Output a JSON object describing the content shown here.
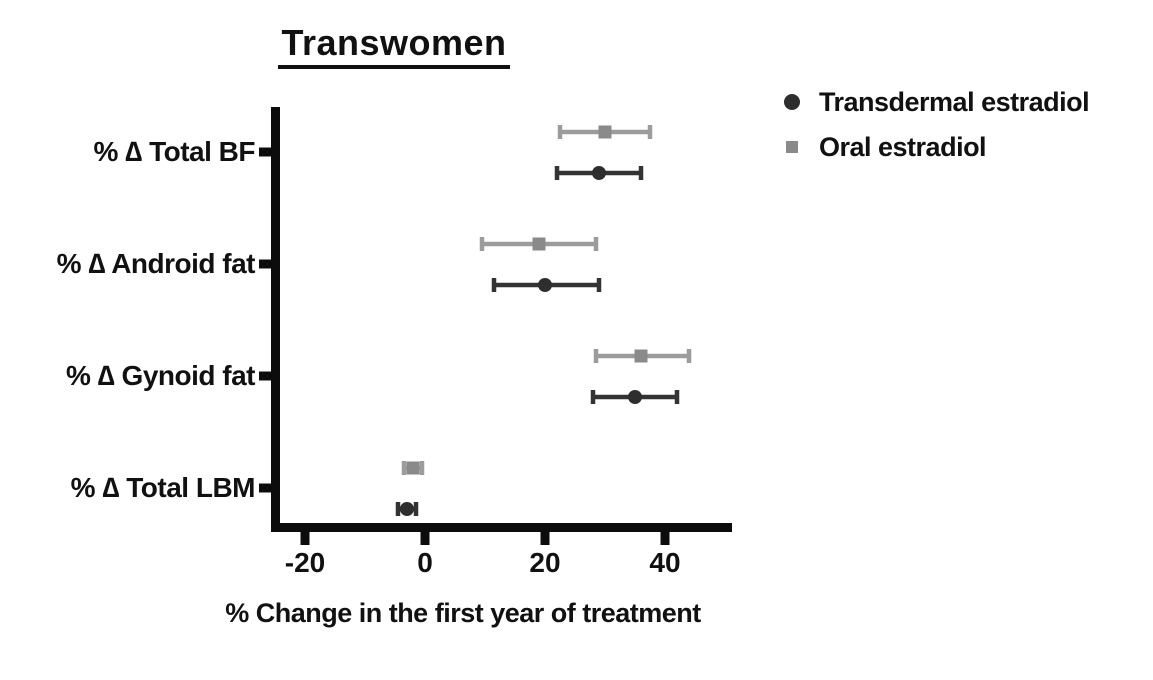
{
  "chart": {
    "legend": [
      {
        "label": "Transdermal estradiol",
        "marker": "circle",
        "color": "#2e2e2e"
      },
      {
        "label": "Oral estradiol",
        "marker": "square",
        "color": "#8a8a8a"
      }
    ]
  },
  "chart_data": {
    "type": "scatter",
    "subtype": "horizontal-point-estimates-with-error-bars",
    "title": "Transwomen",
    "xlabel": "% Change in the first year of treatment",
    "ylabel": "",
    "categories": [
      "% ∆ Total BF",
      "% ∆ Android fat",
      "% ∆ Gynoid fat",
      "% ∆ Total LBM"
    ],
    "x_ticks": [
      -20,
      0,
      20,
      40
    ],
    "xlim": [
      -25.5,
      51
    ],
    "grid": false,
    "legend_position": "outside-upper-right",
    "series": [
      {
        "name": "Oral estradiol",
        "marker": "square",
        "color": "#8a8a8a",
        "line_color": "#9c9c9c",
        "values": [
          30,
          19,
          36,
          -2
        ],
        "ci_low": [
          22.5,
          9.5,
          28.5,
          -3.5
        ],
        "ci_high": [
          37.5,
          28.5,
          44,
          -0.5
        ]
      },
      {
        "name": "Transdermal estradiol",
        "marker": "circle",
        "color": "#2e2e2e",
        "line_color": "#333333",
        "values": [
          29,
          20,
          35,
          -3
        ],
        "ci_low": [
          22,
          11.5,
          28,
          -4.5
        ],
        "ci_high": [
          36,
          29,
          42,
          -1.5
        ]
      }
    ]
  }
}
